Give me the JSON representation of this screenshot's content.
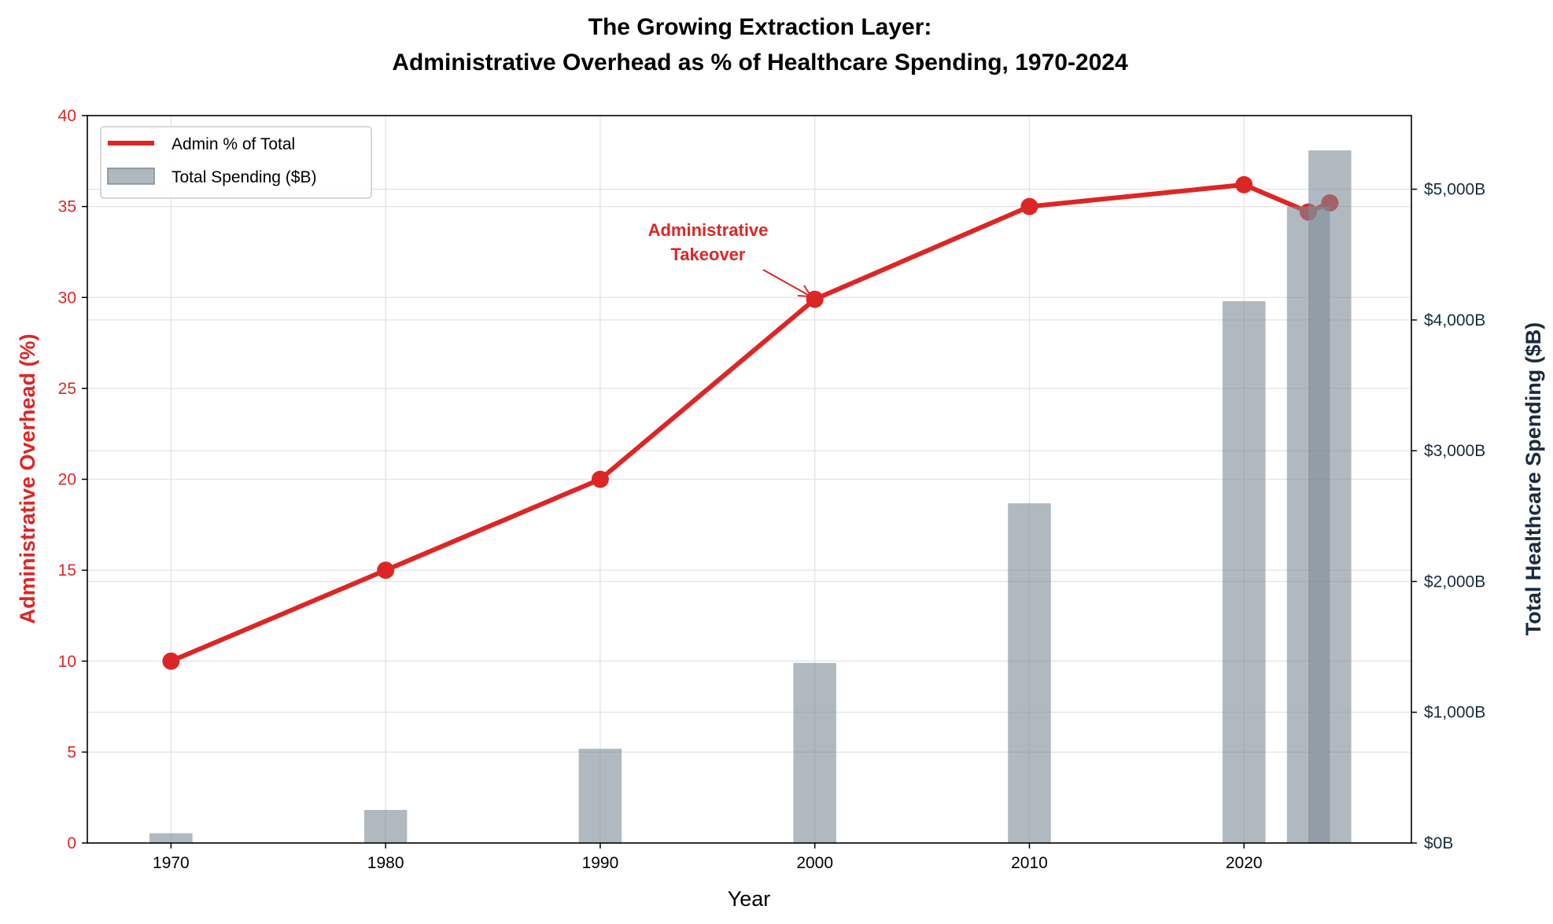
{
  "chart_data": {
    "type": "line+bar",
    "title_line1": "The Growing Extraction Layer:",
    "title_line2": "Administrative Overhead as % of Healthcare Spending, 1970-2024",
    "xlabel": "Year",
    "ylabel_left": "Administrative Overhead (%)",
    "ylabel_right": "Total Healthcare Spending ($B)",
    "xlim": [
      1966.1,
      2027.8
    ],
    "ylim_left": [
      0,
      40
    ],
    "ylim_right": [
      0,
      5563
    ],
    "x_ticks": [
      1970,
      1980,
      1990,
      2000,
      2010,
      2020
    ],
    "x_tick_labels": [
      "1970",
      "1980",
      "1990",
      "2000",
      "2010",
      "2020"
    ],
    "y_left_ticks": [
      0,
      5,
      10,
      15,
      20,
      25,
      30,
      35,
      40
    ],
    "y_left_tick_labels": [
      "0",
      "5",
      "10",
      "15",
      "20",
      "25",
      "30",
      "35",
      "40"
    ],
    "y_right_ticks": [
      0,
      1000,
      2000,
      3000,
      4000,
      5000
    ],
    "y_right_tick_labels": [
      "$0B",
      "$1,000B",
      "$2,000B",
      "$3,000B",
      "$4,000B",
      "$5,000B"
    ],
    "grid": true,
    "legend_position": "top-left",
    "x": [
      1970,
      1980,
      1990,
      2000,
      2010,
      2020,
      2023,
      2024
    ],
    "series": [
      {
        "name": "Admin % of Total",
        "type": "line",
        "axis": "left",
        "color": "#dc2626",
        "values": [
          10,
          15,
          20,
          29.9,
          35.0,
          36.2,
          34.7,
          35.2
        ]
      },
      {
        "name": "Total Spending ($B)",
        "type": "bar",
        "axis": "right",
        "color": "#7d8a96",
        "bar_width_years": 2,
        "values": [
          75,
          253,
          721,
          1377,
          2598,
          4144,
          4867,
          5297
        ]
      }
    ],
    "annotation": {
      "lines": [
        "Administrative",
        "Takeover"
      ],
      "target_x": 2000,
      "target_y": 29.9,
      "color": "#dc2626"
    }
  }
}
